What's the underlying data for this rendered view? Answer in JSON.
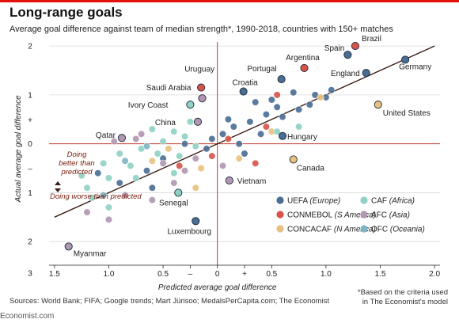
{
  "title": "Long-range goals",
  "subtitle": "Average goal difference against team of median strength*, 1990-2018, countries with 150+ matches",
  "sources": "Sources: World Bank; FIFA; Google trends; Mart Jürisoo; MedalsPerCapita.com; The Economist",
  "footnote_line1": "*Based on the criteria used",
  "footnote_line2": "in The Economist's model",
  "site": "Economist.com",
  "colors": {
    "UEFA": "#4a6d94",
    "CONMEBOL": "#d9534a",
    "CONCACAF": "#e8c17e",
    "CAF": "#8fd1c3",
    "AFC": "#b197b1",
    "OFC": "#7fb4c4",
    "axis_red": "#c0392b",
    "trend": "#3a1d14"
  },
  "annotations": {
    "better": [
      "Doing",
      "better than",
      "predicted"
    ],
    "worse": "Doing worse than predicted"
  },
  "chart_data": {
    "type": "scatter",
    "xlabel": "Predicted average goal difference",
    "ylabel": "Actual average goal difference",
    "xlim": [
      -1.55,
      2.05
    ],
    "ylim": [
      -2.45,
      2.05
    ],
    "x_ticks": [
      {
        "v": -1.5,
        "label": "1.5"
      },
      {
        "v": -1.0,
        "label": "1.0"
      },
      {
        "v": -0.5,
        "label": "0.5"
      },
      {
        "v": -0.25,
        "label": "–"
      },
      {
        "v": 0,
        "label": "0"
      },
      {
        "v": 0.25,
        "label": "+"
      },
      {
        "v": 0.5,
        "label": "0.5"
      },
      {
        "v": 1.0,
        "label": "1.0"
      },
      {
        "v": 1.5,
        "label": "1.5"
      },
      {
        "v": 2.0,
        "label": "2.0"
      }
    ],
    "y_ticks": [
      {
        "v": 2,
        "label": "2"
      },
      {
        "v": 1,
        "label": "1"
      },
      {
        "v": 0,
        "label": "0"
      },
      {
        "v": -1,
        "label": "1"
      },
      {
        "v": -2,
        "label": "2"
      },
      {
        "v": -3,
        "label": "3"
      }
    ],
    "y_sign_labels": [
      "+",
      "–"
    ],
    "trend_line": [
      [
        -1.5,
        -1.5
      ],
      [
        2.0,
        2.0
      ]
    ],
    "legend": [
      {
        "key": "UEFA",
        "name": "UEFA",
        "region": "(Europe)"
      },
      {
        "key": "CONMEBOL",
        "name": "CONMEBOL",
        "region": "(S America)"
      },
      {
        "key": "CONCACAF",
        "name": "CONCACAF",
        "region": "(N America)"
      },
      {
        "key": "CAF",
        "name": "CAF",
        "region": "(Africa)"
      },
      {
        "key": "AFC",
        "name": "AFC",
        "region": "(Asia)"
      },
      {
        "key": "OFC",
        "name": "OFC",
        "region": "(Oceania)"
      }
    ],
    "labeled_points": [
      {
        "name": "Brazil",
        "x": 1.27,
        "y": 2.0,
        "conf": "CONMEBOL"
      },
      {
        "name": "Spain",
        "x": 1.2,
        "y": 1.82,
        "conf": "UEFA"
      },
      {
        "name": "Argentina",
        "x": 0.8,
        "y": 1.55,
        "conf": "CONMEBOL"
      },
      {
        "name": "England",
        "x": 1.37,
        "y": 1.45,
        "conf": "UEFA"
      },
      {
        "name": "Germany",
        "x": 1.73,
        "y": 1.72,
        "conf": "UEFA"
      },
      {
        "name": "Portugal",
        "x": 0.59,
        "y": 1.32,
        "conf": "UEFA"
      },
      {
        "name": "Croatia",
        "x": 0.24,
        "y": 1.07,
        "conf": "UEFA"
      },
      {
        "name": "United States",
        "x": 1.48,
        "y": 0.8,
        "conf": "CONCACAF"
      },
      {
        "name": "Uruguay",
        "x": -0.15,
        "y": 1.15,
        "conf": "CONMEBOL"
      },
      {
        "name": "Saudi Arabia",
        "x": -0.14,
        "y": 0.93,
        "conf": "AFC"
      },
      {
        "name": "Ivory Coast",
        "x": -0.25,
        "y": 0.8,
        "conf": "CAF"
      },
      {
        "name": "China",
        "x": -0.18,
        "y": 0.45,
        "conf": "AFC"
      },
      {
        "name": "Qatar",
        "x": -0.88,
        "y": 0.12,
        "conf": "AFC"
      },
      {
        "name": "Hungary",
        "x": 0.6,
        "y": 0.16,
        "conf": "UEFA"
      },
      {
        "name": "Canada",
        "x": 0.7,
        "y": -0.32,
        "conf": "CONCACAF"
      },
      {
        "name": "Vietnam",
        "x": 0.11,
        "y": -0.75,
        "conf": "AFC"
      },
      {
        "name": "Senegal",
        "x": -0.36,
        "y": -1.0,
        "conf": "CAF"
      },
      {
        "name": "Luxembourg",
        "x": -0.2,
        "y": -1.58,
        "conf": "UEFA"
      },
      {
        "name": "Myanmar",
        "x": -1.37,
        "y": -2.1,
        "conf": "AFC"
      }
    ],
    "other_points": [
      [
        0.9,
        1.0,
        "UEFA"
      ],
      [
        1.05,
        1.1,
        "UEFA"
      ],
      [
        0.7,
        1.05,
        "UEFA"
      ],
      [
        0.5,
        0.9,
        "UEFA"
      ],
      [
        0.35,
        0.85,
        "UEFA"
      ],
      [
        0.45,
        0.6,
        "UEFA"
      ],
      [
        0.6,
        0.55,
        "UEFA"
      ],
      [
        0.75,
        0.7,
        "UEFA"
      ],
      [
        0.3,
        0.45,
        "UEFA"
      ],
      [
        0.15,
        0.35,
        "UEFA"
      ],
      [
        0.05,
        0.2,
        "UEFA"
      ],
      [
        -0.05,
        0.1,
        "UEFA"
      ],
      [
        0.2,
        0.0,
        "UEFA"
      ],
      [
        0.4,
        0.2,
        "UEFA"
      ],
      [
        0.25,
        -0.2,
        "UEFA"
      ],
      [
        -0.1,
        -0.1,
        "UEFA"
      ],
      [
        -0.3,
        0.0,
        "UEFA"
      ],
      [
        -0.5,
        -0.3,
        "UEFA"
      ],
      [
        -0.65,
        -0.55,
        "UEFA"
      ],
      [
        -0.9,
        -0.8,
        "UEFA"
      ],
      [
        -1.1,
        -0.6,
        "UEFA"
      ],
      [
        -0.6,
        -0.9,
        "UEFA"
      ],
      [
        1.0,
        0.95,
        "UEFA"
      ],
      [
        0.85,
        0.8,
        "UEFA"
      ],
      [
        0.55,
        0.75,
        "UEFA"
      ],
      [
        0.1,
        0.5,
        "UEFA"
      ],
      [
        0.55,
        1.0,
        "CONMEBOL"
      ],
      [
        0.45,
        0.35,
        "CONMEBOL"
      ],
      [
        0.1,
        0.1,
        "CONMEBOL"
      ],
      [
        -0.05,
        -0.25,
        "CONMEBOL"
      ],
      [
        -0.35,
        -0.45,
        "CONMEBOL"
      ],
      [
        0.35,
        -0.4,
        "CONMEBOL"
      ],
      [
        0.95,
        0.95,
        "CONCACAF"
      ],
      [
        0.5,
        0.25,
        "CONCACAF"
      ],
      [
        0.2,
        -0.3,
        "CONCACAF"
      ],
      [
        -0.2,
        -0.9,
        "CONCACAF"
      ],
      [
        -0.45,
        -0.1,
        "CONCACAF"
      ],
      [
        -0.15,
        -0.5,
        "CONCACAF"
      ],
      [
        -0.6,
        -0.35,
        "CONCACAF"
      ],
      [
        -0.4,
        0.25,
        "CAF"
      ],
      [
        -0.3,
        0.15,
        "CAF"
      ],
      [
        -0.2,
        -0.05,
        "CAF"
      ],
      [
        -0.55,
        -0.2,
        "CAF"
      ],
      [
        -0.7,
        -0.1,
        "CAF"
      ],
      [
        -0.8,
        -0.45,
        "CAF"
      ],
      [
        -1.0,
        -0.7,
        "CAF"
      ],
      [
        -1.2,
        -0.9,
        "CAF"
      ],
      [
        -1.15,
        -1.1,
        "CAF"
      ],
      [
        -1.0,
        -1.3,
        "CAF"
      ],
      [
        -0.5,
        0.05,
        "CAF"
      ],
      [
        -0.35,
        -0.25,
        "CAF"
      ],
      [
        -0.25,
        0.45,
        "CAF"
      ],
      [
        0.55,
        0.25,
        "CAF"
      ],
      [
        0.75,
        0.35,
        "CAF"
      ],
      [
        -0.9,
        -0.2,
        "CAF"
      ],
      [
        -0.6,
        0.3,
        "CAF"
      ],
      [
        -1.05,
        -0.4,
        "CAF"
      ],
      [
        -0.75,
        -0.7,
        "CAF"
      ],
      [
        -0.4,
        -0.6,
        "CAF"
      ],
      [
        -1.25,
        -0.65,
        "CAF"
      ],
      [
        -0.95,
        0.05,
        "AFC"
      ],
      [
        -0.7,
        0.2,
        "AFC"
      ],
      [
        -0.5,
        -0.4,
        "AFC"
      ],
      [
        -0.3,
        -0.55,
        "AFC"
      ],
      [
        -0.85,
        -1.05,
        "AFC"
      ],
      [
        -1.0,
        -1.55,
        "AFC"
      ],
      [
        -0.6,
        -1.15,
        "AFC"
      ],
      [
        -0.4,
        -0.8,
        "AFC"
      ],
      [
        0.05,
        -0.45,
        "AFC"
      ],
      [
        -0.75,
        0.1,
        "AFC"
      ],
      [
        -0.2,
        -0.3,
        "AFC"
      ],
      [
        -1.2,
        -1.4,
        "AFC"
      ],
      [
        -0.85,
        -0.35,
        "OFC"
      ],
      [
        -1.05,
        -1.05,
        "OFC"
      ],
      [
        -0.65,
        -0.05,
        "OFC"
      ]
    ]
  }
}
